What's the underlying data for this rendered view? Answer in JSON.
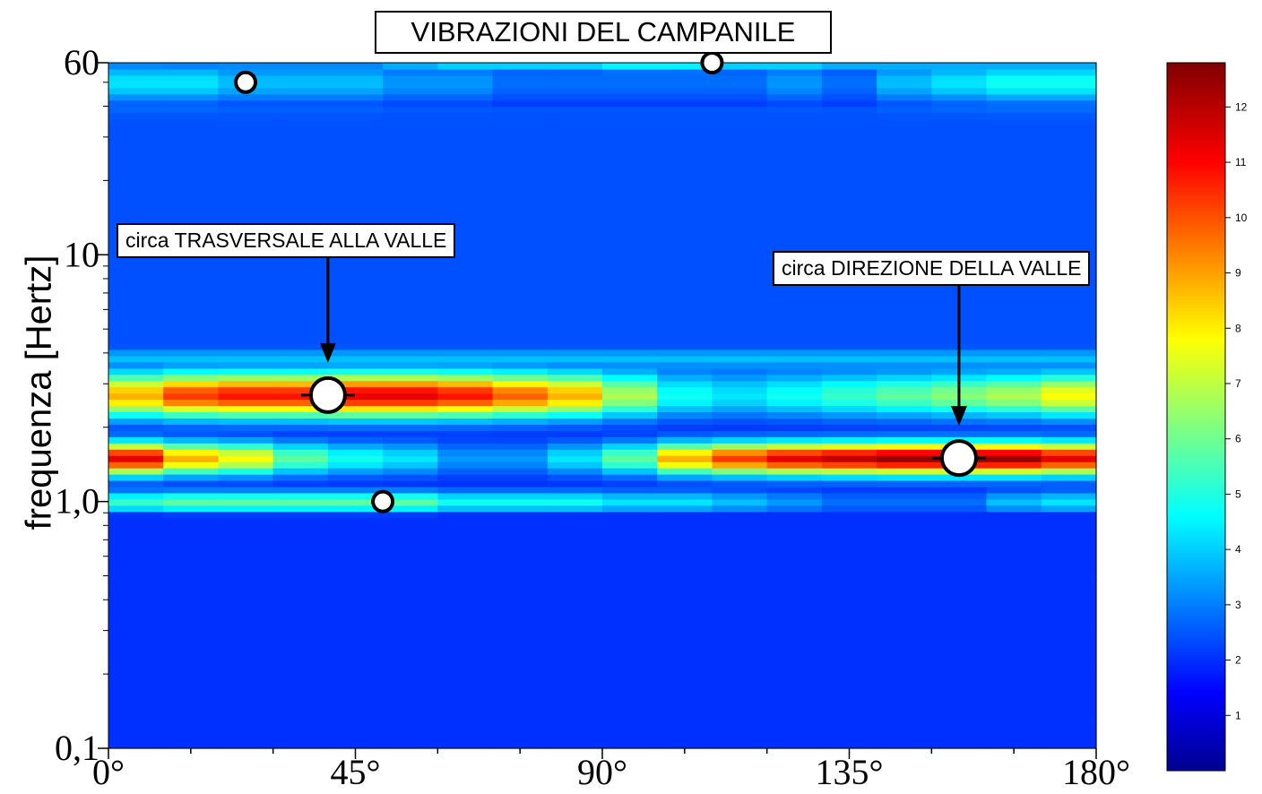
{
  "chart_data": {
    "type": "heatmap",
    "title": "VIBRAZIONI DEL CAMPANILE",
    "xlabel": "",
    "ylabel": "frequenza [Hertz]",
    "x_ticks": [
      "0°",
      "45°",
      "90°",
      "135°",
      "180°"
    ],
    "x_tick_values": [
      0,
      45,
      90,
      135,
      180
    ],
    "y_ticks": [
      "0,1",
      "1,0",
      "10",
      "60"
    ],
    "y_tick_values": [
      0.1,
      1.0,
      10,
      60
    ],
    "xlim": [
      0,
      180
    ],
    "ylim": [
      0.1,
      60
    ],
    "y_scale": "log",
    "colorbar": {
      "ticks": [
        1,
        2,
        3,
        4,
        5,
        6,
        7,
        8,
        9,
        10,
        11,
        12
      ],
      "range": [
        0,
        12.8
      ],
      "colormap": "jet"
    },
    "angle_columns": [
      0,
      10,
      20,
      30,
      40,
      50,
      60,
      70,
      80,
      90,
      100,
      110,
      120,
      130,
      140,
      150,
      160,
      170
    ],
    "bands": [
      {
        "freq": 50,
        "values": [
          4.5,
          4.5,
          4,
          4,
          4,
          3.5,
          3.5,
          3,
          3,
          3,
          3,
          3,
          3.5,
          3,
          4,
          4.5,
          5,
          5
        ]
      },
      {
        "freq": 60,
        "values": [
          3.5,
          3,
          3.5,
          3.5,
          3.5,
          4,
          4.5,
          4.5,
          4.5,
          5,
          5,
          4.5,
          4.5,
          4,
          4,
          4,
          4,
          4
        ]
      },
      {
        "freq": 2.7,
        "values": [
          9,
          10.5,
          11,
          11,
          11.5,
          11.5,
          11,
          10,
          9,
          7,
          5,
          4.5,
          5,
          5.5,
          6,
          6.5,
          7,
          8
        ]
      },
      {
        "freq": 1.5,
        "values": [
          11.5,
          9,
          8,
          6,
          5,
          4.5,
          3.5,
          3.5,
          4.5,
          6,
          9,
          10.5,
          11.5,
          12,
          12.5,
          12.5,
          12.5,
          11.5
        ]
      },
      {
        "freq": 1.0,
        "values": [
          5.5,
          6,
          6,
          6,
          6,
          6,
          5,
          5,
          5,
          4.5,
          4.5,
          4,
          3.5,
          3,
          3,
          3,
          4,
          4.5
        ]
      }
    ],
    "markers": [
      {
        "angle": 25,
        "freq": 50,
        "size": "small"
      },
      {
        "angle": 110,
        "freq": 60,
        "size": "small"
      },
      {
        "angle": 40,
        "freq": 2.7,
        "size": "large"
      },
      {
        "angle": 50,
        "freq": 1.0,
        "size": "small"
      },
      {
        "angle": 155,
        "freq": 1.5,
        "size": "large"
      }
    ],
    "annotations": [
      {
        "text": "circa TRASVERSALE ALLA VALLE",
        "target_angle": 40,
        "target_freq": 2.7
      },
      {
        "text": "circa DIREZIONE DELLA VALLE",
        "target_angle": 155,
        "target_freq": 1.5
      }
    ]
  }
}
